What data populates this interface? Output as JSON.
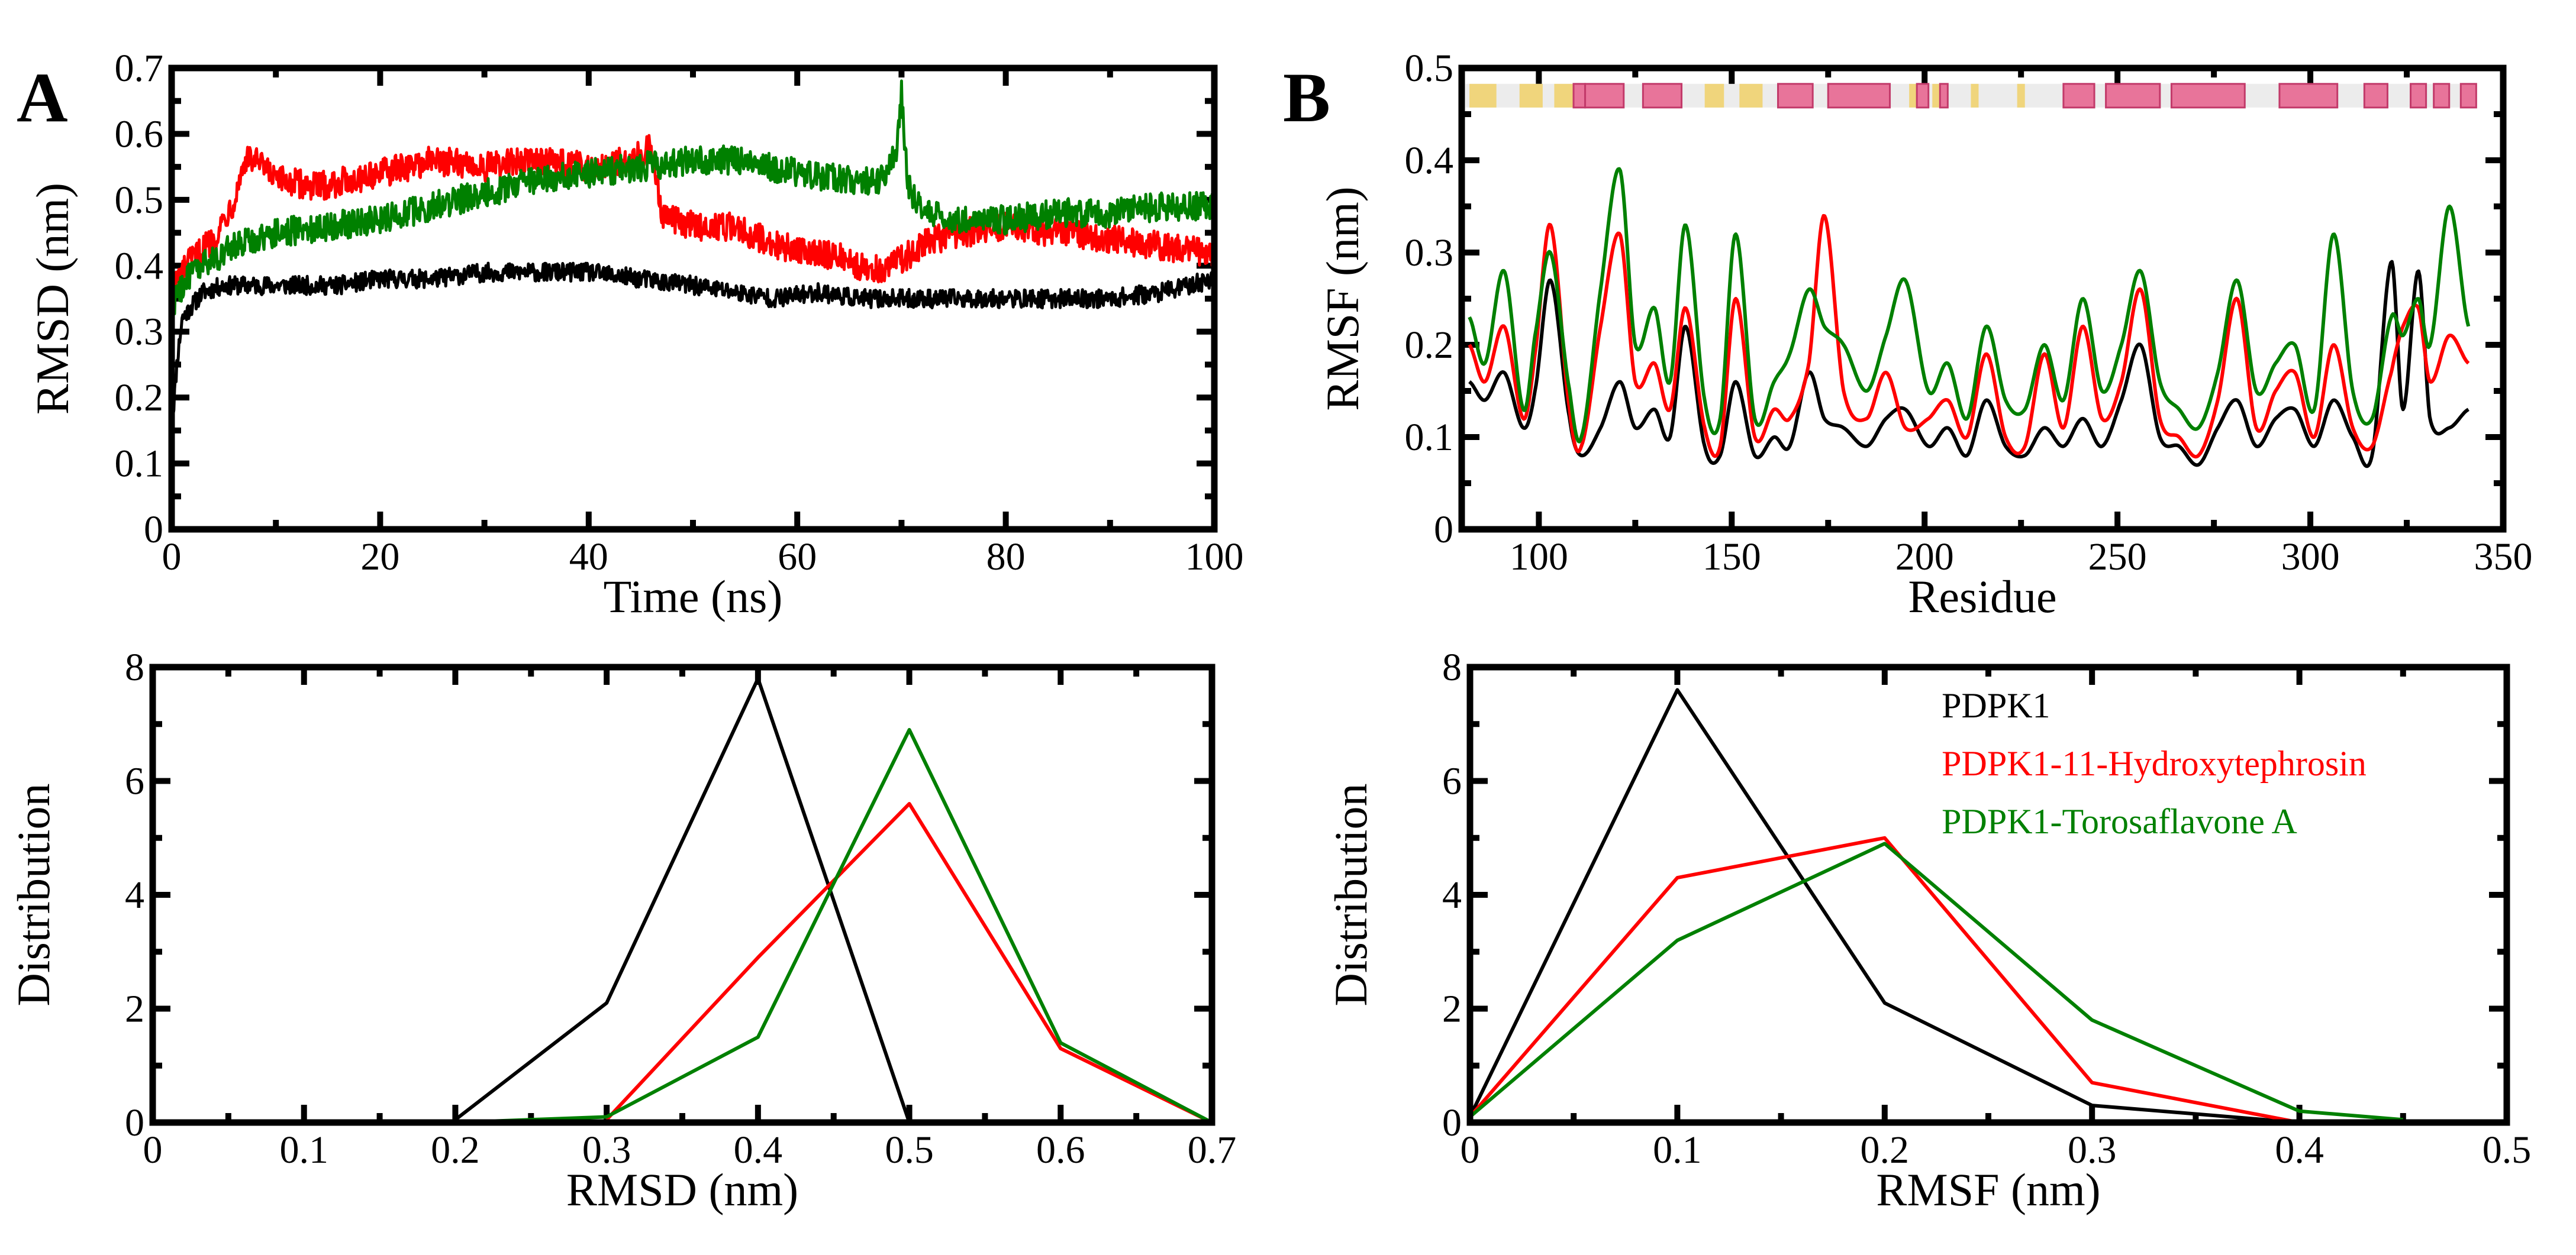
{
  "panel_labels": [
    "A",
    "B"
  ],
  "colors": {
    "pdpk1": "#000000",
    "hydroxy": "#ff0000",
    "torosa": "#008000",
    "helix": "#e8749a",
    "sheet": "#f0d57c"
  },
  "chart_data": [
    {
      "id": "rmsd_time",
      "panel": "A",
      "type": "line",
      "title": "",
      "xlabel": "Time (ns)",
      "ylabel": "RMSD (nm)",
      "xlim": [
        0,
        100
      ],
      "ylim": [
        0,
        0.7
      ],
      "xticks": [
        0,
        20,
        40,
        60,
        80,
        100
      ],
      "yticks": [
        0,
        0.1,
        0.2,
        0.3,
        0.4,
        0.5,
        0.6,
        0.7
      ],
      "xtick_labels": [
        "0",
        "20",
        "40",
        "60",
        "80",
        "100"
      ],
      "ytick_labels": [
        "0",
        "0.1",
        "0.2",
        "0.3",
        "0.4",
        "0.5",
        "0.6",
        "0.7"
      ],
      "series": [
        {
          "name": "PDPK1",
          "color": "#000000",
          "noise": 0.014,
          "x": [
            0,
            0.5,
            1,
            2,
            3,
            5,
            8,
            12,
            16,
            20,
            25,
            30,
            35,
            40,
            45,
            50,
            54,
            58,
            62,
            66,
            70,
            75,
            80,
            85,
            90,
            95,
            100
          ],
          "y": [
            0.15,
            0.25,
            0.32,
            0.34,
            0.36,
            0.37,
            0.37,
            0.37,
            0.37,
            0.38,
            0.38,
            0.39,
            0.39,
            0.39,
            0.38,
            0.37,
            0.36,
            0.35,
            0.36,
            0.35,
            0.35,
            0.35,
            0.35,
            0.35,
            0.35,
            0.36,
            0.38
          ]
        },
        {
          "name": "PDPK1-11-Hydroxytephrosin",
          "color": "#ff0000",
          "noise": 0.022,
          "x": [
            0,
            1,
            2,
            4,
            6,
            7,
            8,
            10,
            14,
            20,
            25,
            30,
            35,
            40,
            44,
            46,
            47,
            48,
            50,
            54,
            58,
            62,
            65,
            67,
            70,
            73,
            76,
            80,
            85,
            90,
            95,
            100
          ],
          "y": [
            0.36,
            0.39,
            0.41,
            0.44,
            0.5,
            0.56,
            0.56,
            0.53,
            0.52,
            0.54,
            0.56,
            0.55,
            0.56,
            0.55,
            0.56,
            0.58,
            0.48,
            0.47,
            0.46,
            0.46,
            0.43,
            0.42,
            0.41,
            0.39,
            0.41,
            0.44,
            0.45,
            0.46,
            0.45,
            0.44,
            0.43,
            0.42
          ]
        },
        {
          "name": "PDPK1-Torosaflavone A",
          "color": "#008000",
          "noise": 0.022,
          "x": [
            0,
            1,
            2,
            4,
            6,
            8,
            10,
            15,
            20,
            25,
            30,
            35,
            40,
            45,
            50,
            55,
            60,
            65,
            68,
            69.5,
            70,
            70.6,
            72,
            75,
            80,
            85,
            90,
            95,
            100
          ],
          "y": [
            0.34,
            0.37,
            0.39,
            0.41,
            0.43,
            0.44,
            0.45,
            0.46,
            0.47,
            0.49,
            0.51,
            0.53,
            0.54,
            0.55,
            0.56,
            0.56,
            0.54,
            0.53,
            0.53,
            0.58,
            0.66,
            0.52,
            0.48,
            0.47,
            0.47,
            0.48,
            0.48,
            0.49,
            0.49
          ]
        }
      ]
    },
    {
      "id": "rmsf_residue",
      "panel": "B",
      "type": "line",
      "title": "",
      "xlabel": "Residue",
      "ylabel": "RMSF (nm)",
      "xlim": [
        80,
        350
      ],
      "ylim": [
        0,
        0.5
      ],
      "xticks": [
        100,
        150,
        200,
        250,
        300,
        350
      ],
      "yticks": [
        0,
        0.1,
        0.2,
        0.3,
        0.4,
        0.5
      ],
      "xtick_labels": [
        "100",
        "150",
        "200",
        "250",
        "300",
        "350"
      ],
      "ytick_labels": [
        "0",
        "0.1",
        "0.2",
        "0.3",
        "0.4",
        "0.5"
      ],
      "secondary_structure": {
        "y_level": 0.47,
        "helix": [
          [
            109,
            112
          ],
          [
            112,
            122
          ],
          [
            127,
            137
          ],
          [
            162,
            171
          ],
          [
            175,
            191
          ],
          [
            198,
            201
          ],
          [
            204,
            206
          ],
          [
            236,
            244
          ],
          [
            247,
            261
          ],
          [
            264,
            283
          ],
          [
            292,
            307
          ],
          [
            314,
            320
          ],
          [
            326,
            330
          ],
          [
            332,
            336
          ],
          [
            339,
            343
          ]
        ],
        "sheet": [
          [
            82,
            89
          ],
          [
            95,
            101
          ],
          [
            104,
            111
          ],
          [
            143,
            148
          ],
          [
            152,
            158
          ],
          [
            167,
            168
          ],
          [
            196,
            198
          ],
          [
            202,
            204
          ],
          [
            212,
            214
          ],
          [
            224,
            226
          ]
        ]
      },
      "series": [
        {
          "name": "PDPK1",
          "color": "#000000",
          "x": [
            82,
            86,
            91,
            96,
            99,
            103,
            108,
            111,
            116,
            121,
            125,
            130,
            134,
            138,
            143,
            147,
            151,
            156,
            161,
            165,
            170,
            174,
            179,
            185,
            190,
            195,
            201,
            206,
            211,
            216,
            221,
            226,
            231,
            236,
            241,
            246,
            251,
            256,
            261,
            266,
            271,
            276,
            281,
            286,
            291,
            296,
            301,
            306,
            311,
            316,
            321,
            324,
            328,
            331,
            336,
            341
          ],
          "y": [
            0.16,
            0.14,
            0.17,
            0.11,
            0.15,
            0.27,
            0.12,
            0.08,
            0.11,
            0.16,
            0.11,
            0.13,
            0.1,
            0.22,
            0.09,
            0.08,
            0.16,
            0.08,
            0.1,
            0.09,
            0.17,
            0.12,
            0.11,
            0.09,
            0.12,
            0.13,
            0.09,
            0.11,
            0.08,
            0.14,
            0.09,
            0.08,
            0.11,
            0.09,
            0.12,
            0.09,
            0.14,
            0.2,
            0.1,
            0.09,
            0.07,
            0.11,
            0.14,
            0.09,
            0.12,
            0.13,
            0.09,
            0.14,
            0.1,
            0.08,
            0.29,
            0.13,
            0.28,
            0.12,
            0.11,
            0.13
          ]
        },
        {
          "name": "PDPK1-11-Hydroxytephrosin",
          "color": "#ff0000",
          "x": [
            82,
            86,
            91,
            96,
            99,
            103,
            108,
            111,
            116,
            121,
            125,
            130,
            134,
            138,
            143,
            147,
            151,
            156,
            161,
            165,
            170,
            174,
            179,
            185,
            190,
            195,
            201,
            206,
            211,
            216,
            221,
            226,
            231,
            236,
            241,
            246,
            251,
            256,
            261,
            266,
            271,
            276,
            281,
            286,
            291,
            296,
            301,
            306,
            311,
            316,
            321,
            324,
            328,
            331,
            336,
            341
          ],
          "y": [
            0.2,
            0.16,
            0.22,
            0.12,
            0.19,
            0.33,
            0.13,
            0.09,
            0.22,
            0.32,
            0.16,
            0.18,
            0.13,
            0.24,
            0.11,
            0.09,
            0.25,
            0.1,
            0.13,
            0.12,
            0.18,
            0.34,
            0.15,
            0.12,
            0.17,
            0.11,
            0.12,
            0.14,
            0.1,
            0.19,
            0.1,
            0.09,
            0.19,
            0.11,
            0.22,
            0.12,
            0.16,
            0.26,
            0.12,
            0.1,
            0.08,
            0.14,
            0.25,
            0.11,
            0.15,
            0.17,
            0.1,
            0.2,
            0.11,
            0.09,
            0.17,
            0.22,
            0.24,
            0.16,
            0.21,
            0.18
          ]
        },
        {
          "name": "PDPK1-Torosaflavone A",
          "color": "#008000",
          "x": [
            82,
            86,
            91,
            96,
            99,
            103,
            108,
            111,
            116,
            121,
            125,
            130,
            134,
            138,
            143,
            147,
            151,
            156,
            161,
            165,
            170,
            174,
            179,
            185,
            190,
            195,
            201,
            206,
            211,
            216,
            221,
            226,
            231,
            236,
            241,
            246,
            251,
            256,
            261,
            266,
            271,
            276,
            281,
            286,
            291,
            296,
            301,
            306,
            311,
            316,
            321,
            324,
            328,
            331,
            336,
            341
          ],
          "y": [
            0.23,
            0.18,
            0.28,
            0.13,
            0.21,
            0.3,
            0.15,
            0.1,
            0.26,
            0.39,
            0.2,
            0.24,
            0.16,
            0.33,
            0.14,
            0.12,
            0.32,
            0.12,
            0.16,
            0.19,
            0.26,
            0.22,
            0.2,
            0.15,
            0.21,
            0.27,
            0.15,
            0.18,
            0.12,
            0.22,
            0.14,
            0.13,
            0.2,
            0.14,
            0.25,
            0.15,
            0.2,
            0.28,
            0.16,
            0.13,
            0.11,
            0.17,
            0.27,
            0.15,
            0.18,
            0.2,
            0.13,
            0.32,
            0.15,
            0.12,
            0.23,
            0.21,
            0.25,
            0.2,
            0.35,
            0.22
          ]
        }
      ]
    },
    {
      "id": "rmsd_distribution",
      "panel": "A",
      "type": "line",
      "title": "",
      "xlabel": "RMSD (nm)",
      "ylabel": "Distribution",
      "xlim": [
        0,
        0.7
      ],
      "ylim": [
        0,
        8
      ],
      "xticks": [
        0,
        0.1,
        0.2,
        0.3,
        0.4,
        0.5,
        0.6,
        0.7
      ],
      "yticks": [
        0,
        2,
        4,
        6,
        8
      ],
      "xtick_labels": [
        "0",
        "0.1",
        "0.2",
        "0.3",
        "0.4",
        "0.5",
        "0.6",
        "0.7"
      ],
      "ytick_labels": [
        "0",
        "2",
        "4",
        "6",
        "8"
      ],
      "series": [
        {
          "name": "PDPK1",
          "color": "#000000",
          "x": [
            0.2,
            0.3,
            0.4,
            0.5
          ],
          "y": [
            0.05,
            2.1,
            7.8,
            0.0
          ]
        },
        {
          "name": "PDPK1-11-Hydroxytephrosin",
          "color": "#ff0000",
          "x": [
            0.3,
            0.4,
            0.5,
            0.6,
            0.7
          ],
          "y": [
            0.05,
            2.9,
            5.6,
            1.3,
            0.0
          ]
        },
        {
          "name": "PDPK1-Torosaflavone A",
          "color": "#008000",
          "x": [
            0.2,
            0.3,
            0.4,
            0.5,
            0.6,
            0.7
          ],
          "y": [
            0.0,
            0.1,
            1.5,
            6.9,
            1.4,
            0.0
          ]
        }
      ]
    },
    {
      "id": "rmsf_distribution",
      "panel": "B",
      "type": "line",
      "title": "",
      "xlabel": "RMSF (nm)",
      "ylabel": "Distribution",
      "xlim": [
        0,
        0.5
      ],
      "ylim": [
        0,
        8
      ],
      "xticks": [
        0,
        0.1,
        0.2,
        0.3,
        0.4,
        0.5
      ],
      "yticks": [
        0,
        2,
        4,
        6,
        8
      ],
      "xtick_labels": [
        "0",
        "0.1",
        "0.2",
        "0.3",
        "0.4",
        "0.5"
      ],
      "ytick_labels": [
        "0",
        "2",
        "4",
        "6",
        "8"
      ],
      "legend": {
        "position": "top-right",
        "entries": [
          "PDPK1",
          "PDPK1-11-Hydroxytephrosin",
          "PDPK1-Torosaflavone A"
        ]
      },
      "series": [
        {
          "name": "PDPK1",
          "color": "#000000",
          "x": [
            0,
            0.1,
            0.2,
            0.3,
            0.4
          ],
          "y": [
            0.1,
            7.6,
            2.1,
            0.3,
            0.0
          ]
        },
        {
          "name": "PDPK1-11-Hydroxytephrosin",
          "color": "#ff0000",
          "x": [
            0,
            0.1,
            0.2,
            0.3,
            0.4
          ],
          "y": [
            0.1,
            4.3,
            5.0,
            0.7,
            0.0
          ]
        },
        {
          "name": "PDPK1-Torosaflavone A",
          "color": "#008000",
          "x": [
            0,
            0.1,
            0.2,
            0.3,
            0.4,
            0.45
          ],
          "y": [
            0.1,
            3.2,
            4.9,
            1.8,
            0.2,
            0.05
          ]
        }
      ]
    }
  ]
}
